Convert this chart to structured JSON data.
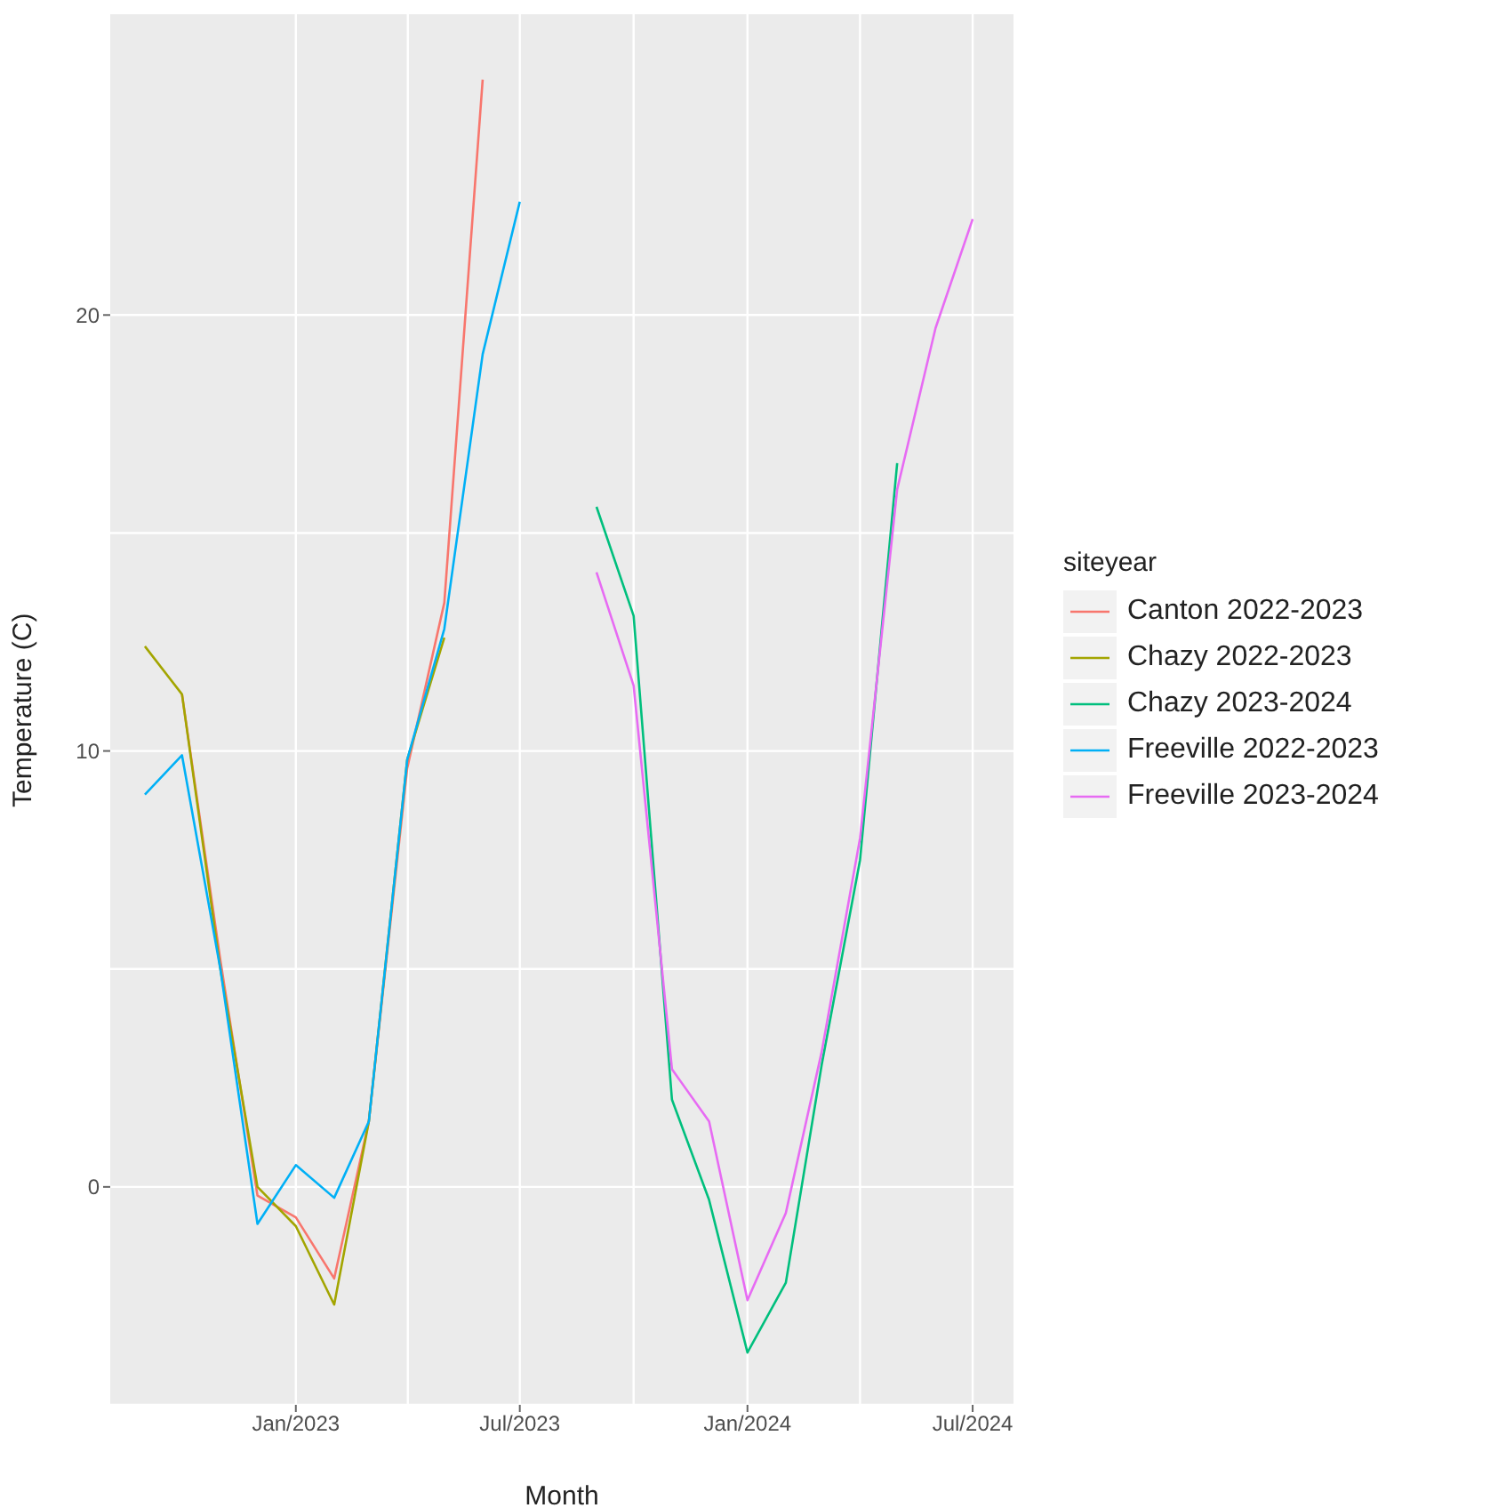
{
  "chart_data": {
    "type": "line",
    "xlabel": "Month",
    "ylabel": "Temperature (C)",
    "legend_title": "siteyear",
    "legend": "right",
    "grid": true,
    "line_style": "solid",
    "marker": "none",
    "xlim": [
      "2022-08-04",
      "2024-08-03"
    ],
    "xticks": [
      {
        "value": "2023-01-01",
        "label": "Jan/2023"
      },
      {
        "value": "2023-07-01",
        "label": "Jul/2023"
      },
      {
        "value": "2024-01-01",
        "label": "Jan/2024"
      },
      {
        "value": "2024-07-01",
        "label": "Jul/2024"
      }
    ],
    "ylim": [
      -5,
      26.9
    ],
    "yticks": [
      0,
      10,
      20
    ],
    "series": [
      {
        "name": "Canton 2022-2023",
        "color": "#f8766d",
        "x": [
          "2022-10-01",
          "2022-11-01",
          "2022-12-01",
          "2023-01-01",
          "2023-02-01",
          "2023-03-01",
          "2023-04-01",
          "2023-05-01",
          "2023-06-01"
        ],
        "values": [
          11.3,
          5.2,
          -0.2,
          -0.7,
          -2.1,
          1.5,
          9.6,
          13.4,
          25.4
        ]
      },
      {
        "name": "Chazy 2022-2023",
        "color": "#a3a500",
        "x": [
          "2022-09-01",
          "2022-10-01",
          "2022-11-01",
          "2022-12-01",
          "2023-01-01",
          "2023-02-01",
          "2023-03-01",
          "2023-04-01",
          "2023-05-01"
        ],
        "values": [
          12.4,
          11.3,
          5.0,
          0.0,
          -0.9,
          -2.7,
          1.5,
          9.8,
          12.6
        ]
      },
      {
        "name": "Chazy 2023-2024",
        "color": "#00bf7d",
        "x": [
          "2023-09-01",
          "2023-10-01",
          "2023-11-01",
          "2023-12-01",
          "2024-01-01",
          "2024-02-01",
          "2024-03-01",
          "2024-04-01",
          "2024-05-01"
        ],
        "values": [
          15.6,
          13.1,
          2.0,
          -0.3,
          -3.8,
          -2.2,
          2.8,
          7.5,
          16.6
        ]
      },
      {
        "name": "Freeville 2022-2023",
        "color": "#00b0f6",
        "x": [
          "2022-09-01",
          "2022-10-01",
          "2022-11-01",
          "2022-12-01",
          "2023-01-01",
          "2023-02-01",
          "2023-03-01",
          "2023-04-01",
          "2023-05-01",
          "2023-06-01",
          "2023-07-01"
        ],
        "values": [
          9.0,
          9.9,
          5.0,
          -0.85,
          0.5,
          -0.25,
          1.5,
          9.8,
          12.8,
          19.1,
          22.6
        ]
      },
      {
        "name": "Freeville 2023-2024",
        "color": "#e76bf3",
        "x": [
          "2023-09-01",
          "2023-10-01",
          "2023-11-01",
          "2023-12-01",
          "2024-01-01",
          "2024-02-01",
          "2024-03-01",
          "2024-04-01",
          "2024-05-01",
          "2024-06-01",
          "2024-07-01"
        ],
        "values": [
          14.1,
          11.5,
          2.7,
          1.5,
          -2.6,
          -0.6,
          3.1,
          8.0,
          16.0,
          19.7,
          22.2
        ]
      }
    ]
  }
}
